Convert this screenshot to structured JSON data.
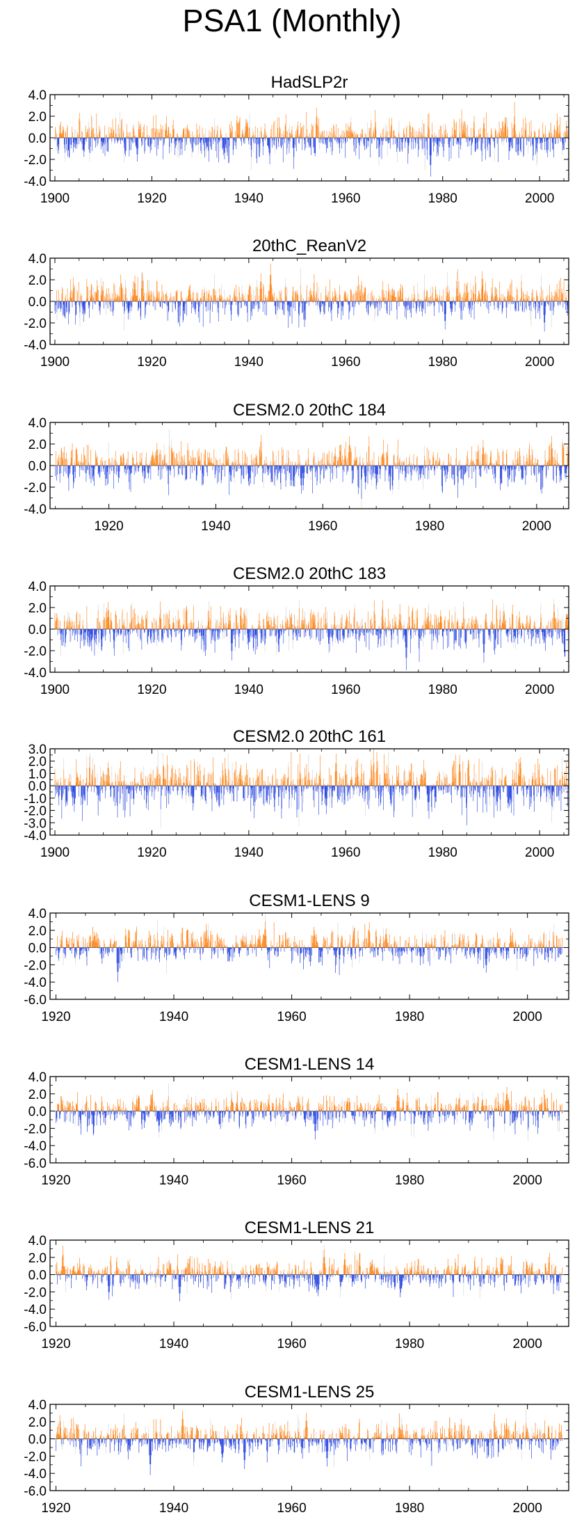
{
  "title": "PSA1 (Monthly)",
  "colors": {
    "positive": "#ff7f0e",
    "negative": "#1f3ee0",
    "axis": "#000000",
    "faint": "#cfcfcf"
  },
  "chart_data": [
    {
      "type": "bar",
      "title": "HadSLP2r",
      "xlim": [
        1899,
        2006
      ],
      "ylim": [
        -4,
        4
      ],
      "yticks": [
        4,
        2,
        0,
        -2,
        -4
      ],
      "ytick_labels": [
        "4.0",
        "2.0",
        "0.0",
        "-2.0",
        "-4.0"
      ],
      "xticks": [
        1900,
        1920,
        1940,
        1960,
        1980,
        2000
      ],
      "xtick_labels": [
        "1900",
        "1920",
        "1940",
        "1960",
        "1980",
        "2000"
      ],
      "series_note": "monthly PSA1 index, orange bars > 0, blue bars < 0",
      "x_start": 1900,
      "x_end": 2006,
      "seed": 11,
      "amp": 0.85,
      "features": [
        [
          1977.5,
          -3.6
        ],
        [
          1954.0,
          2.8
        ],
        [
          1988.5,
          1.9
        ],
        [
          1917.0,
          -2.2
        ],
        [
          1935.0,
          -2.0
        ]
      ]
    },
    {
      "type": "bar",
      "title": "20thC_ReanV2",
      "xlim": [
        1899,
        2006
      ],
      "ylim": [
        -4,
        4
      ],
      "yticks": [
        4,
        2,
        0,
        -2,
        -4
      ],
      "ytick_labels": [
        "4.0",
        "2.0",
        "0.0",
        "-2.0",
        "-4.0"
      ],
      "xticks": [
        1900,
        1920,
        1940,
        1960,
        1980,
        2000
      ],
      "xtick_labels": [
        "1900",
        "1920",
        "1940",
        "1960",
        "1980",
        "2000"
      ],
      "series_note": "monthly PSA1 index, orange bars > 0, blue bars < 0",
      "x_start": 1900,
      "x_end": 2006,
      "seed": 23,
      "amp": 0.8,
      "features": [
        [
          1944.5,
          3.5
        ],
        [
          1918.0,
          2.7
        ],
        [
          1916.5,
          2.4
        ],
        [
          1942.5,
          2.6
        ],
        [
          1980.5,
          -2.6
        ],
        [
          2001.0,
          -2.8
        ]
      ]
    },
    {
      "type": "bar",
      "title": "CESM2.0 20thC 184",
      "xlim": [
        1909,
        2006
      ],
      "ylim": [
        -4,
        4
      ],
      "yticks": [
        4,
        2,
        0,
        -2,
        -4
      ],
      "ytick_labels": [
        "4.0",
        "2.0",
        "0.0",
        "-2.0",
        "-4.0"
      ],
      "xticks": [
        1920,
        1940,
        1960,
        1980,
        2000
      ],
      "xtick_labels": [
        "1920",
        "1940",
        "1960",
        "1980",
        "2000"
      ],
      "series_note": "monthly PSA1 index, orange bars > 0, blue bars < 0",
      "x_start": 1910,
      "x_end": 2006,
      "seed": 37,
      "amp": 0.9,
      "features": [
        [
          1965.0,
          2.7
        ],
        [
          1968.0,
          -2.2
        ],
        [
          1929.0,
          2.1
        ],
        [
          1990.0,
          2.4
        ],
        [
          1956.0,
          -2.6
        ]
      ]
    },
    {
      "type": "bar",
      "title": "CESM2.0 20thC 183",
      "xlim": [
        1899,
        2006
      ],
      "ylim": [
        -4,
        4
      ],
      "yticks": [
        4,
        2,
        0,
        -2,
        -4
      ],
      "ytick_labels": [
        "4.0",
        "2.0",
        "0.0",
        "-2.0",
        "-4.0"
      ],
      "xticks": [
        1900,
        1920,
        1940,
        1960,
        1980,
        2000
      ],
      "xtick_labels": [
        "1900",
        "1920",
        "1940",
        "1960",
        "1980",
        "2000"
      ],
      "series_note": "monthly PSA1 index, orange bars > 0, blue bars < 0",
      "x_start": 1900,
      "x_end": 2006,
      "seed": 41,
      "amp": 0.9,
      "features": [
        [
          1972.5,
          -3.8
        ],
        [
          1936.5,
          -2.9
        ],
        [
          1911.0,
          2.5
        ],
        [
          1988.5,
          -3.1
        ],
        [
          2003.0,
          2.3
        ]
      ]
    },
    {
      "type": "bar",
      "title": "CESM2.0 20thC 161",
      "xlim": [
        1899,
        2006
      ],
      "ylim": [
        -4,
        3
      ],
      "yticks": [
        3,
        2,
        1,
        0,
        -1,
        -2,
        -3,
        -4
      ],
      "ytick_labels": [
        "3.0",
        "2.0",
        "1.0",
        "0.0",
        "-1.0",
        "-2.0",
        "-3.0",
        "-4.0"
      ],
      "xticks": [
        1900,
        1920,
        1940,
        1960,
        1980,
        2000
      ],
      "xtick_labels": [
        "1900",
        "1920",
        "1940",
        "1960",
        "1980",
        "2000"
      ],
      "series_note": "monthly PSA1 index, orange bars > 0, blue bars < 0",
      "x_start": 1900,
      "x_end": 2006,
      "seed": 53,
      "amp": 0.95,
      "features": [
        [
          1958.0,
          2.6
        ],
        [
          1983.5,
          2.5
        ],
        [
          1956.0,
          -2.3
        ],
        [
          1904.0,
          -2.1
        ],
        [
          1928.5,
          -2.0
        ]
      ]
    },
    {
      "type": "bar",
      "title": "CESM1-LENS 9",
      "xlim": [
        1919,
        2007
      ],
      "ylim": [
        -6,
        4
      ],
      "yticks": [
        4,
        2,
        0,
        -2,
        -4,
        -6
      ],
      "ytick_labels": [
        "4.0",
        "2.0",
        "0.0",
        "-2.0",
        "-4.0",
        "-6.0"
      ],
      "xticks": [
        1920,
        1940,
        1960,
        1980,
        2000
      ],
      "xtick_labels": [
        "1920",
        "1940",
        "1960",
        "1980",
        "2000"
      ],
      "series_note": "monthly PSA1 index, orange bars > 0, blue bars < 0",
      "x_start": 1920,
      "x_end": 2006,
      "seed": 67,
      "amp": 0.85,
      "features": [
        [
          1930.5,
          -4.0
        ],
        [
          1955.5,
          3.0
        ],
        [
          1976.0,
          2.2
        ],
        [
          1993.0,
          -2.9
        ]
      ]
    },
    {
      "type": "bar",
      "title": "CESM1-LENS 14",
      "xlim": [
        1919,
        2007
      ],
      "ylim": [
        -6,
        4
      ],
      "yticks": [
        4,
        2,
        0,
        -2,
        -4,
        -6
      ],
      "ytick_labels": [
        "4.0",
        "2.0",
        "0.0",
        "-2.0",
        "-4.0",
        "-6.0"
      ],
      "xticks": [
        1920,
        1940,
        1960,
        1980,
        2000
      ],
      "xtick_labels": [
        "1920",
        "1940",
        "1960",
        "1980",
        "2000"
      ],
      "series_note": "monthly PSA1 index, orange bars > 0, blue bars < 0",
      "x_start": 1920,
      "x_end": 2006,
      "seed": 79,
      "amp": 0.9,
      "features": [
        [
          1964.0,
          -3.3
        ],
        [
          1996.5,
          2.8
        ],
        [
          1978.0,
          2.6
        ],
        [
          1937.5,
          -2.4
        ]
      ]
    },
    {
      "type": "bar",
      "title": "CESM1-LENS 21",
      "xlim": [
        1919,
        2007
      ],
      "ylim": [
        -6,
        4
      ],
      "yticks": [
        4,
        2,
        0,
        -2,
        -4,
        -6
      ],
      "ytick_labels": [
        "4.0",
        "2.0",
        "0.0",
        "-2.0",
        "-4.0",
        "-6.0"
      ],
      "xticks": [
        1920,
        1940,
        1960,
        1980,
        2000
      ],
      "xtick_labels": [
        "1920",
        "1940",
        "1960",
        "1980",
        "2000"
      ],
      "series_note": "monthly PSA1 index, orange bars > 0, blue bars < 0",
      "x_start": 1920,
      "x_end": 2006,
      "seed": 97,
      "amp": 0.85,
      "features": [
        [
          1965.5,
          2.9
        ],
        [
          1969.0,
          2.5
        ],
        [
          1929.0,
          -2.9
        ],
        [
          1941.0,
          -3.1
        ],
        [
          1964.5,
          -2.5
        ]
      ]
    },
    {
      "type": "bar",
      "title": "CESM1-LENS 25",
      "xlim": [
        1919,
        2007
      ],
      "ylim": [
        -6,
        4
      ],
      "yticks": [
        4,
        2,
        0,
        -2,
        -4,
        -6
      ],
      "ytick_labels": [
        "4.0",
        "2.0",
        "0.0",
        "-2.0",
        "-4.0",
        "-6.0"
      ],
      "xticks": [
        1920,
        1940,
        1960,
        1980,
        2000
      ],
      "xtick_labels": [
        "1920",
        "1940",
        "1960",
        "1980",
        "2000"
      ],
      "series_note": "monthly PSA1 index, orange bars > 0, blue bars < 0",
      "x_start": 1920,
      "x_end": 2006,
      "seed": 113,
      "amp": 0.9,
      "features": [
        [
          1936.0,
          -4.2
        ],
        [
          1941.5,
          3.3
        ],
        [
          1952.0,
          -3.5
        ],
        [
          1962.5,
          3.0
        ],
        [
          1966.0,
          -3.2
        ]
      ]
    }
  ]
}
